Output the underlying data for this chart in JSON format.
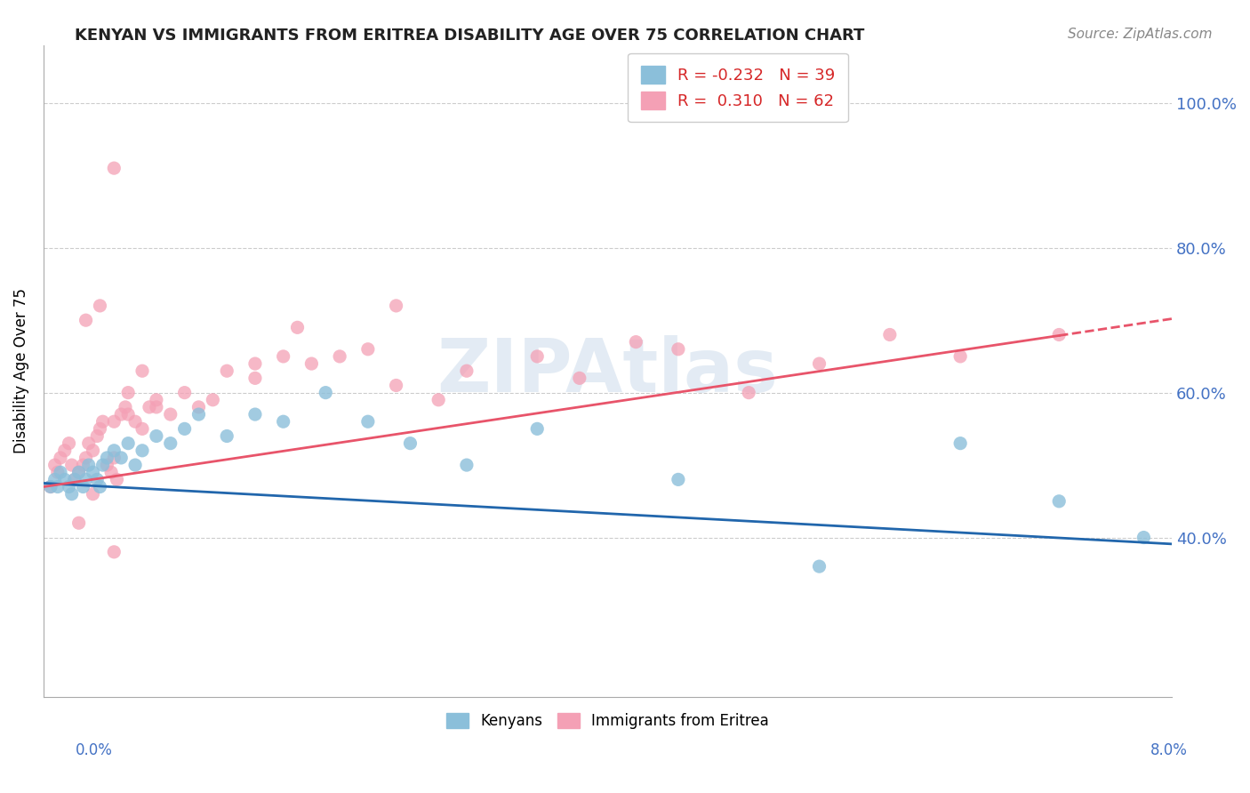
{
  "title": "KENYAN VS IMMIGRANTS FROM ERITREA DISABILITY AGE OVER 75 CORRELATION CHART",
  "source": "Source: ZipAtlas.com",
  "ylabel": "Disability Age Over 75",
  "xmin": 0.0,
  "xmax": 8.0,
  "ymin": 18.0,
  "ymax": 108.0,
  "yticks": [
    40.0,
    60.0,
    80.0,
    100.0
  ],
  "ytick_labels": [
    "40.0%",
    "60.0%",
    "80.0%",
    "100.0%"
  ],
  "legend_r_blue": "-0.232",
  "legend_n_blue": "39",
  "legend_r_pink": "0.310",
  "legend_n_pink": "62",
  "blue_color": "#8bbfda",
  "pink_color": "#f4a0b5",
  "blue_line_color": "#2166ac",
  "pink_line_color": "#e8546a",
  "watermark_text": "ZIPAtlas",
  "blue_line_intercept": 47.5,
  "blue_line_slope": -1.05,
  "pink_line_intercept": 47.0,
  "pink_line_slope": 2.9,
  "pink_data_xmax": 7.2,
  "blue_x": [
    0.05,
    0.08,
    0.1,
    0.12,
    0.15,
    0.18,
    0.2,
    0.22,
    0.25,
    0.28,
    0.3,
    0.32,
    0.35,
    0.38,
    0.4,
    0.42,
    0.45,
    0.5,
    0.55,
    0.6,
    0.65,
    0.7,
    0.8,
    0.9,
    1.0,
    1.1,
    1.3,
    1.5,
    1.7,
    2.0,
    2.3,
    2.6,
    3.0,
    3.5,
    4.5,
    5.5,
    6.5,
    7.2,
    7.8
  ],
  "blue_y": [
    47,
    48,
    47,
    49,
    48,
    47,
    46,
    48,
    49,
    47,
    48,
    50,
    49,
    48,
    47,
    50,
    51,
    52,
    51,
    53,
    50,
    52,
    54,
    53,
    55,
    57,
    54,
    57,
    56,
    60,
    56,
    53,
    50,
    55,
    48,
    36,
    53,
    45,
    40
  ],
  "pink_x": [
    0.05,
    0.08,
    0.1,
    0.12,
    0.15,
    0.18,
    0.2,
    0.22,
    0.25,
    0.28,
    0.3,
    0.32,
    0.35,
    0.38,
    0.4,
    0.42,
    0.45,
    0.48,
    0.5,
    0.52,
    0.55,
    0.58,
    0.6,
    0.65,
    0.7,
    0.75,
    0.8,
    0.9,
    1.0,
    1.1,
    1.2,
    1.3,
    1.5,
    1.7,
    1.9,
    2.1,
    2.3,
    2.5,
    2.8,
    3.0,
    3.5,
    3.8,
    4.5,
    5.0,
    5.5,
    6.0,
    6.5,
    7.2,
    0.3,
    0.4,
    0.5,
    0.6,
    0.7,
    0.8,
    0.25,
    0.35,
    1.5,
    0.5,
    1.8,
    2.5,
    4.2,
    0.5
  ],
  "pink_y": [
    47,
    50,
    49,
    51,
    52,
    53,
    50,
    48,
    49,
    50,
    51,
    53,
    52,
    54,
    55,
    56,
    50,
    49,
    51,
    48,
    57,
    58,
    57,
    56,
    55,
    58,
    59,
    57,
    60,
    58,
    59,
    63,
    62,
    65,
    64,
    65,
    66,
    61,
    59,
    63,
    65,
    62,
    66,
    60,
    64,
    68,
    65,
    68,
    70,
    72,
    56,
    60,
    63,
    58,
    42,
    46,
    64,
    91,
    69,
    72,
    67,
    38
  ]
}
